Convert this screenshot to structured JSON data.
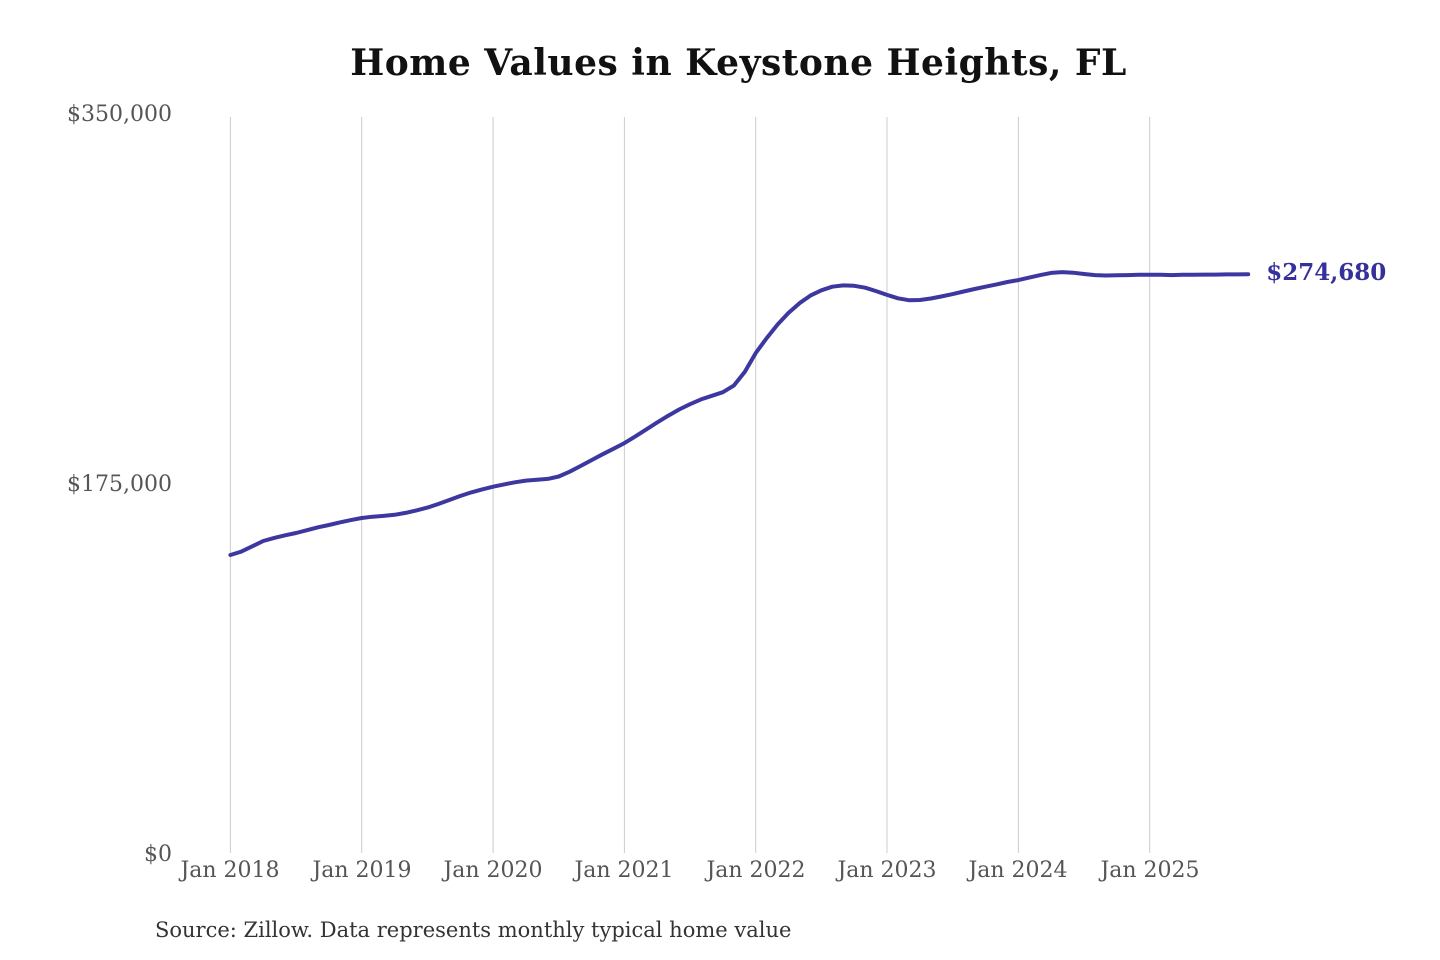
{
  "chart_data": {
    "type": "line",
    "title": "Home Values in Keystone Heights, FL",
    "source_note": "Source: Zillow. Data represents monthly typical home value",
    "series_name": "Monthly typical home value",
    "unit": "USD",
    "frequency": "monthly",
    "x_start": "2018-01",
    "x_end": "2025-10",
    "values": [
      141900,
      143500,
      146000,
      148500,
      150000,
      151200,
      152300,
      153600,
      155000,
      156100,
      157300,
      158400,
      159400,
      160000,
      160400,
      160900,
      161800,
      163000,
      164300,
      166000,
      167900,
      169800,
      171500,
      172900,
      174200,
      175300,
      176300,
      177100,
      177500,
      177900,
      179000,
      181300,
      184000,
      186800,
      189500,
      192100,
      194800,
      198000,
      201300,
      204600,
      207800,
      210700,
      213200,
      215500,
      217200,
      218900,
      222000,
      228500,
      237400,
      244500,
      250900,
      256400,
      261000,
      264600,
      267100,
      268800,
      269400,
      269200,
      268300,
      266700,
      264900,
      263300,
      262400,
      262500,
      263200,
      264200,
      265300,
      266500,
      267700,
      268800,
      269900,
      271000,
      271900,
      273100,
      274300,
      275300,
      275700,
      275400,
      274800,
      274300,
      274100,
      274200,
      274300,
      274400,
      274400,
      274400,
      274300,
      274400,
      274400,
      274500,
      274500,
      274600,
      274600,
      274680
    ],
    "last_value": 274680,
    "end_label": "$274,680",
    "ylim": [
      0,
      350000
    ],
    "y_ticks": [
      {
        "value": 350000,
        "label": "$350,000"
      },
      {
        "value": 175000,
        "label": "$175,000"
      },
      {
        "value": 0,
        "label": "$0"
      }
    ],
    "x_ticks": [
      {
        "month_index": 0,
        "label": "Jan 2018"
      },
      {
        "month_index": 12,
        "label": "Jan 2019"
      },
      {
        "month_index": 24,
        "label": "Jan 2020"
      },
      {
        "month_index": 36,
        "label": "Jan 2021"
      },
      {
        "month_index": 48,
        "label": "Jan 2022"
      },
      {
        "month_index": 60,
        "label": "Jan 2023"
      },
      {
        "month_index": 72,
        "label": "Jan 2024"
      },
      {
        "month_index": 84,
        "label": "Jan 2025"
      }
    ],
    "grid": "vertical-only",
    "legend": "none",
    "colors": {
      "line": "#3d37a0",
      "end_label": "#36309b",
      "gridline": "#cccccc",
      "tick_text": "#555555",
      "title_text": "#111111",
      "source_text": "#333333"
    }
  }
}
